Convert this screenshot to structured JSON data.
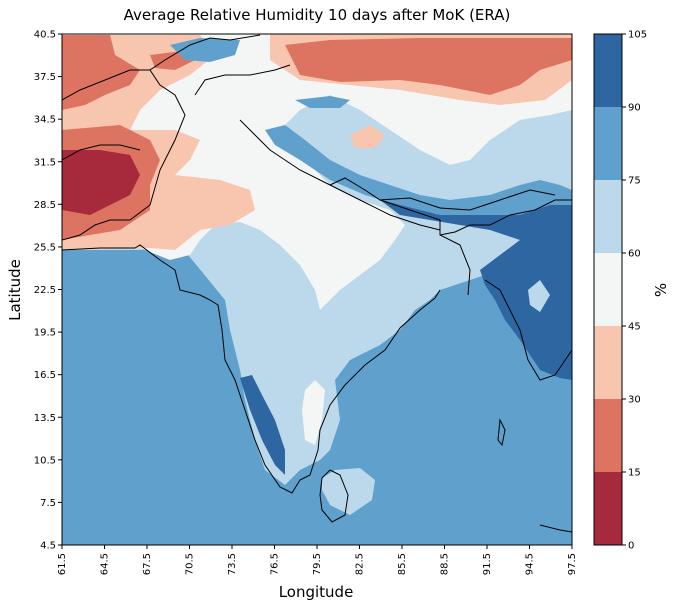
{
  "chart_data": {
    "type": "heatmap",
    "title": "Average Relative Humidity 10 days after MoK (ERA)",
    "xlabel": "Longitude",
    "ylabel": "Latitude",
    "xlim": [
      61.5,
      97.5
    ],
    "ylim": [
      4.5,
      40.5
    ],
    "xticks": [
      "61.5",
      "64.5",
      "67.5",
      "70.5",
      "73.5",
      "76.5",
      "79.5",
      "82.5",
      "85.5",
      "88.5",
      "91.5",
      "94.5",
      "97.5"
    ],
    "yticks": [
      "4.5",
      "7.5",
      "10.5",
      "13.5",
      "16.5",
      "19.5",
      "22.5",
      "25.5",
      "28.5",
      "31.5",
      "34.5",
      "37.5",
      "40.5"
    ],
    "colorbar": {
      "label": "%",
      "levels": [
        0,
        15,
        30,
        45,
        60,
        75,
        90,
        105
      ],
      "tick_labels": [
        "0",
        "15",
        "30",
        "45",
        "60",
        "75",
        "90",
        "105"
      ],
      "colors": [
        "#a72a3c",
        "#dd7462",
        "#f8c5ae",
        "#f4f6f6",
        "#bbd9ea",
        "#5fa1cc",
        "#2e66a2"
      ]
    },
    "background_level_color": "#5fa1cc"
  }
}
